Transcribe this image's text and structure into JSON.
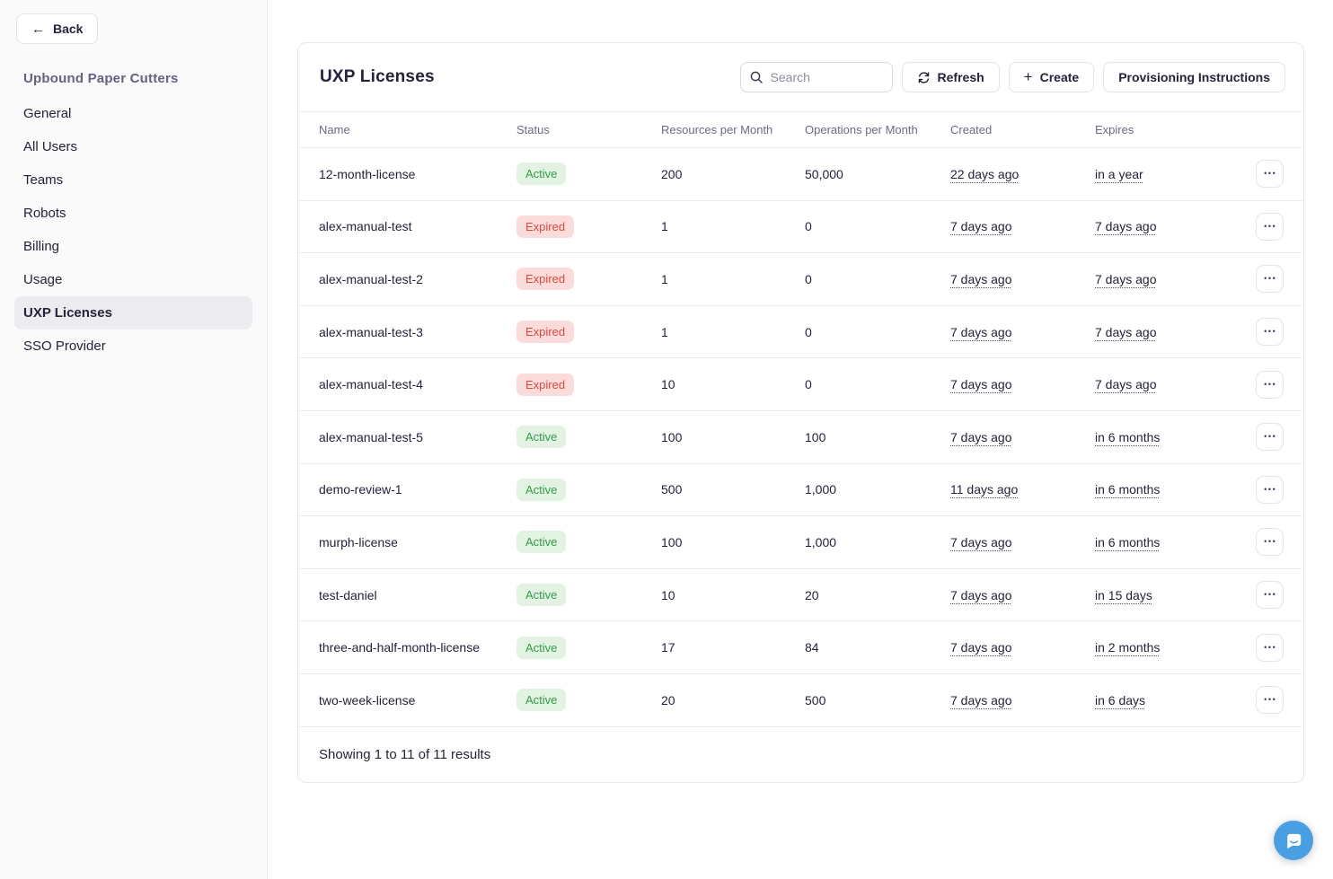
{
  "sidebar": {
    "back_label": "Back",
    "org_title": "Upbound Paper Cutters",
    "items": [
      {
        "label": "General",
        "active": false
      },
      {
        "label": "All Users",
        "active": false
      },
      {
        "label": "Teams",
        "active": false
      },
      {
        "label": "Robots",
        "active": false
      },
      {
        "label": "Billing",
        "active": false
      },
      {
        "label": "Usage",
        "active": false
      },
      {
        "label": "UXP Licenses",
        "active": true
      },
      {
        "label": "SSO Provider",
        "active": false
      }
    ]
  },
  "main": {
    "title": "UXP Licenses",
    "search_placeholder": "Search",
    "buttons": {
      "refresh": "Refresh",
      "create": "Create",
      "provisioning": "Provisioning Instructions"
    },
    "table": {
      "columns": [
        "Name",
        "Status",
        "Resources per Month",
        "Operations per Month",
        "Created",
        "Expires"
      ],
      "rows": [
        {
          "name": "12-month-license",
          "status": "Active",
          "resources": "200",
          "operations": "50,000",
          "created": "22 days ago",
          "expires": "in a year"
        },
        {
          "name": "alex-manual-test",
          "status": "Expired",
          "resources": "1",
          "operations": "0",
          "created": "7 days ago",
          "expires": "7 days ago"
        },
        {
          "name": "alex-manual-test-2",
          "status": "Expired",
          "resources": "1",
          "operations": "0",
          "created": "7 days ago",
          "expires": "7 days ago"
        },
        {
          "name": "alex-manual-test-3",
          "status": "Expired",
          "resources": "1",
          "operations": "0",
          "created": "7 days ago",
          "expires": "7 days ago"
        },
        {
          "name": "alex-manual-test-4",
          "status": "Expired",
          "resources": "10",
          "operations": "0",
          "created": "7 days ago",
          "expires": "7 days ago"
        },
        {
          "name": "alex-manual-test-5",
          "status": "Active",
          "resources": "100",
          "operations": "100",
          "created": "7 days ago",
          "expires": "in 6 months"
        },
        {
          "name": "demo-review-1",
          "status": "Active",
          "resources": "500",
          "operations": "1,000",
          "created": "11 days ago",
          "expires": "in 6 months"
        },
        {
          "name": "murph-license",
          "status": "Active",
          "resources": "100",
          "operations": "1,000",
          "created": "7 days ago",
          "expires": "in 6 months"
        },
        {
          "name": "test-daniel",
          "status": "Active",
          "resources": "10",
          "operations": "20",
          "created": "7 days ago",
          "expires": "in 15 days"
        },
        {
          "name": "three-and-half-month-license",
          "status": "Active",
          "resources": "17",
          "operations": "84",
          "created": "7 days ago",
          "expires": "in 2 months"
        },
        {
          "name": "two-week-license",
          "status": "Active",
          "resources": "20",
          "operations": "500",
          "created": "7 days ago",
          "expires": "in 6 days"
        }
      ],
      "footer": "Showing 1 to 11 of 11 results"
    }
  },
  "icons": {
    "back_glyph": "←",
    "plus_glyph": "+",
    "ellipsis_glyph": "•••",
    "search": "magnifier",
    "refresh": "circular-arrows",
    "chat": "speech-bubble-smile"
  },
  "colors": {
    "status_active_bg": "#e2f3e3",
    "status_active_text": "#359a48",
    "status_expired_bg": "#fcdcda",
    "status_expired_text": "#dc4840",
    "chat_launcher": "#4a9fe3",
    "sidebar_selected_bg": "#ececf0"
  }
}
